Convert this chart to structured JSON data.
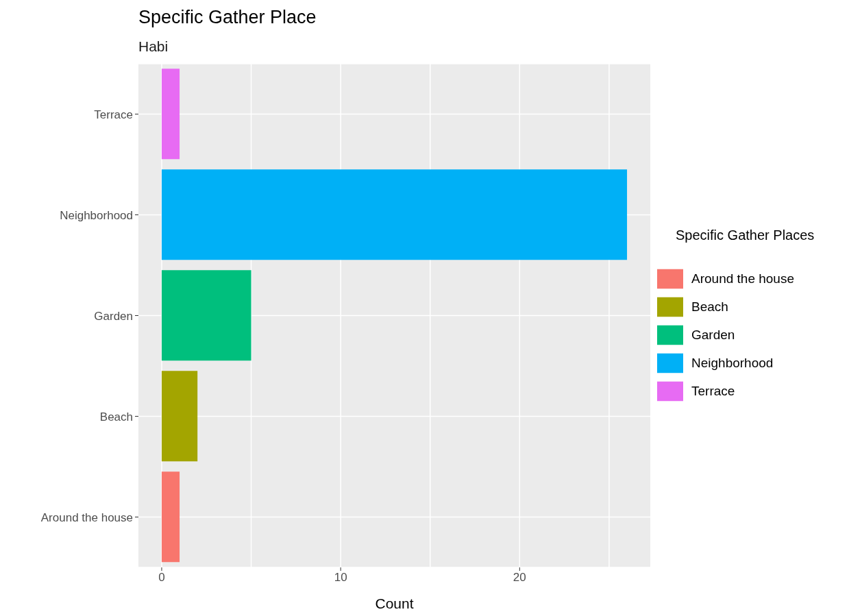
{
  "chart_data": {
    "type": "bar",
    "orientation": "horizontal",
    "stacked": true,
    "title": "Specific Gather Place",
    "subtitle": "Habi",
    "xlabel": "Count",
    "legend_title": "Specific Gather Places",
    "categories": [
      "Terrace",
      "Neighborhood",
      "Garden",
      "Beach",
      "Around the house"
    ],
    "series": [
      {
        "name": "Around the house",
        "color": "#f8766d",
        "values": [
          null,
          null,
          null,
          null,
          1
        ]
      },
      {
        "name": "Beach",
        "color": "#a3a500",
        "values": [
          null,
          null,
          null,
          2,
          null
        ]
      },
      {
        "name": "Garden",
        "color": "#00bf7d",
        "values": [
          null,
          null,
          5,
          null,
          null
        ]
      },
      {
        "name": "Neighborhood",
        "color": "#00b0f6",
        "values": [
          null,
          26,
          null,
          null,
          null
        ]
      },
      {
        "name": "Terrace",
        "color": "#e76bf3",
        "values": [
          1,
          null,
          null,
          null,
          null
        ]
      }
    ],
    "xlim": [
      -1.3,
      27.3
    ],
    "xticks": [
      0,
      {
        "value": 5,
        "label": null
      },
      10,
      {
        "value": 15,
        "label": null
      },
      20,
      {
        "value": 25,
        "label": null
      }
    ],
    "grid": true,
    "legend": "right"
  }
}
